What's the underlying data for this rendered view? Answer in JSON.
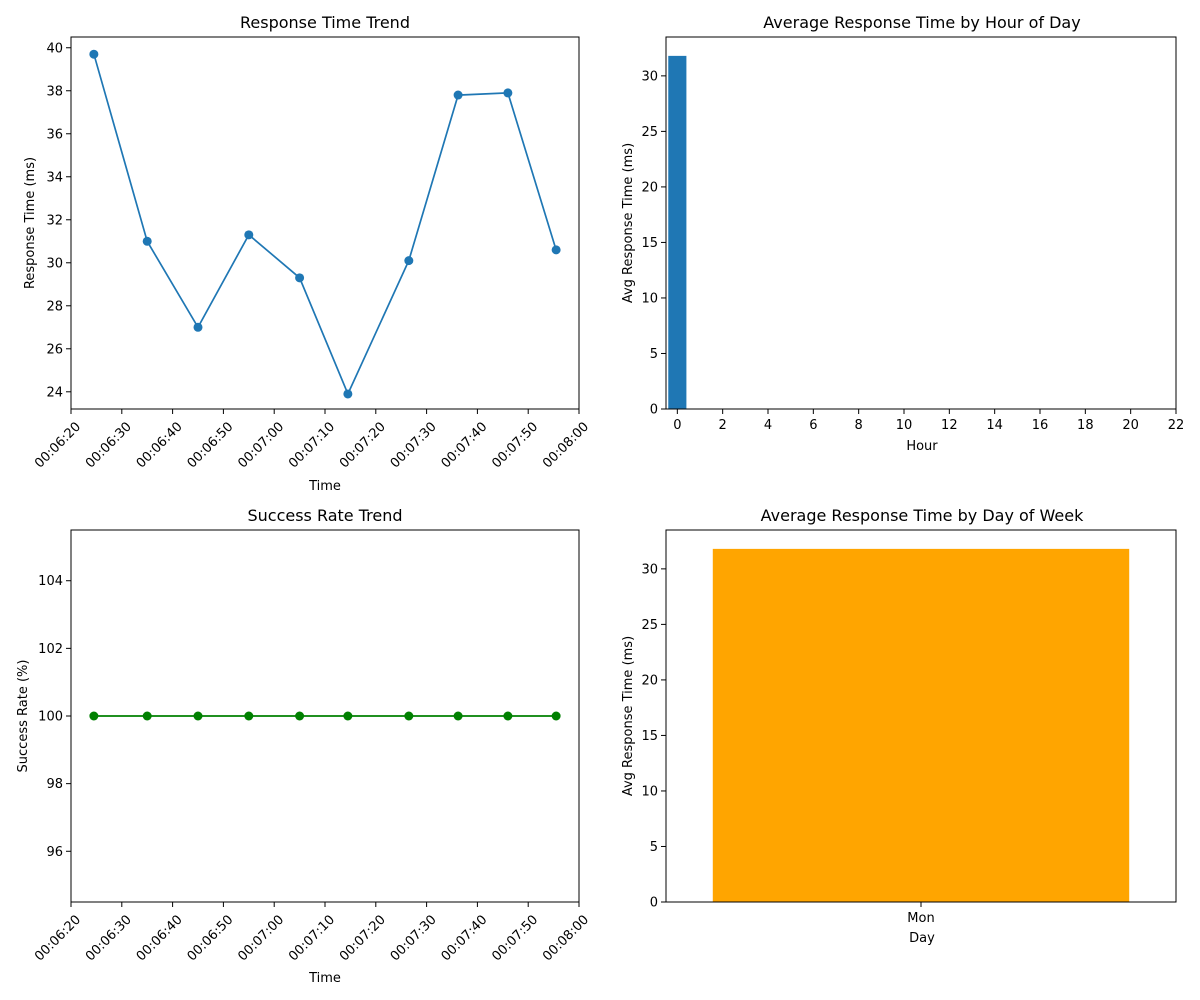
{
  "chart_data": [
    {
      "id": "response_trend",
      "type": "line",
      "title": "Response Time Trend",
      "xlabel": "Time",
      "ylabel": "Response Time (ms)",
      "x_ticks": [
        "00:06:20",
        "00:06:30",
        "00:06:40",
        "00:06:50",
        "00:07:00",
        "00:07:10",
        "00:07:20",
        "00:07:30",
        "00:07:40",
        "00:07:50",
        "00:08:00"
      ],
      "x": [
        "00:06:24.5",
        "00:06:35",
        "00:06:45",
        "00:06:55",
        "00:07:05",
        "00:07:14.5",
        "00:07:26.5",
        "00:07:36.2",
        "00:07:46",
        "00:07:55.5"
      ],
      "xlim": [
        "00:06:20",
        "00:08:00"
      ],
      "y_ticks": [
        24,
        26,
        28,
        30,
        32,
        34,
        36,
        38,
        40
      ],
      "values": [
        39.7,
        31.0,
        27.0,
        31.3,
        29.3,
        23.9,
        30.1,
        37.8,
        37.9,
        30.6
      ],
      "ylim": [
        23.2,
        40.5
      ],
      "color": "#1f77b4",
      "marker": "circle",
      "grid": false
    },
    {
      "id": "hourly_avg",
      "type": "bar",
      "title": "Average Response Time by Hour of Day",
      "xlabel": "Hour",
      "ylabel": "Avg Response Time (ms)",
      "x_ticks": [
        "0",
        "2",
        "4",
        "6",
        "8",
        "10",
        "12",
        "14",
        "16",
        "18",
        "20",
        "22"
      ],
      "categories": [
        0
      ],
      "values": [
        31.8
      ],
      "xlim": [
        -0.5,
        22
      ],
      "y_ticks": [
        0,
        5,
        10,
        15,
        20,
        25,
        30
      ],
      "ylim": [
        0,
        33.5
      ],
      "color": "#1f77b4",
      "grid": false
    },
    {
      "id": "success_trend",
      "type": "line",
      "title": "Success Rate Trend",
      "xlabel": "Time",
      "ylabel": "Success Rate (%)",
      "x_ticks": [
        "00:06:20",
        "00:06:30",
        "00:06:40",
        "00:06:50",
        "00:07:00",
        "00:07:10",
        "00:07:20",
        "00:07:30",
        "00:07:40",
        "00:07:50",
        "00:08:00"
      ],
      "x": [
        "00:06:24.5",
        "00:06:35",
        "00:06:45",
        "00:06:55",
        "00:07:05",
        "00:07:14.5",
        "00:07:26.5",
        "00:07:36.2",
        "00:07:46",
        "00:07:55.5"
      ],
      "xlim": [
        "00:06:20",
        "00:08:00"
      ],
      "y_ticks": [
        96,
        98,
        100,
        102,
        104
      ],
      "values": [
        100,
        100,
        100,
        100,
        100,
        100,
        100,
        100,
        100,
        100
      ],
      "ylim": [
        94.5,
        105.5
      ],
      "color": "#008000",
      "marker": "circle",
      "grid": false
    },
    {
      "id": "daily_avg",
      "type": "bar",
      "title": "Average Response Time by Day of Week",
      "xlabel": "Day",
      "ylabel": "Avg Response Time (ms)",
      "x_ticks": [
        "Mon"
      ],
      "categories": [
        "Mon"
      ],
      "values": [
        31.8
      ],
      "y_ticks": [
        0,
        5,
        10,
        15,
        20,
        25,
        30
      ],
      "ylim": [
        0,
        33.5
      ],
      "color": "#FFA500",
      "grid": false
    }
  ]
}
